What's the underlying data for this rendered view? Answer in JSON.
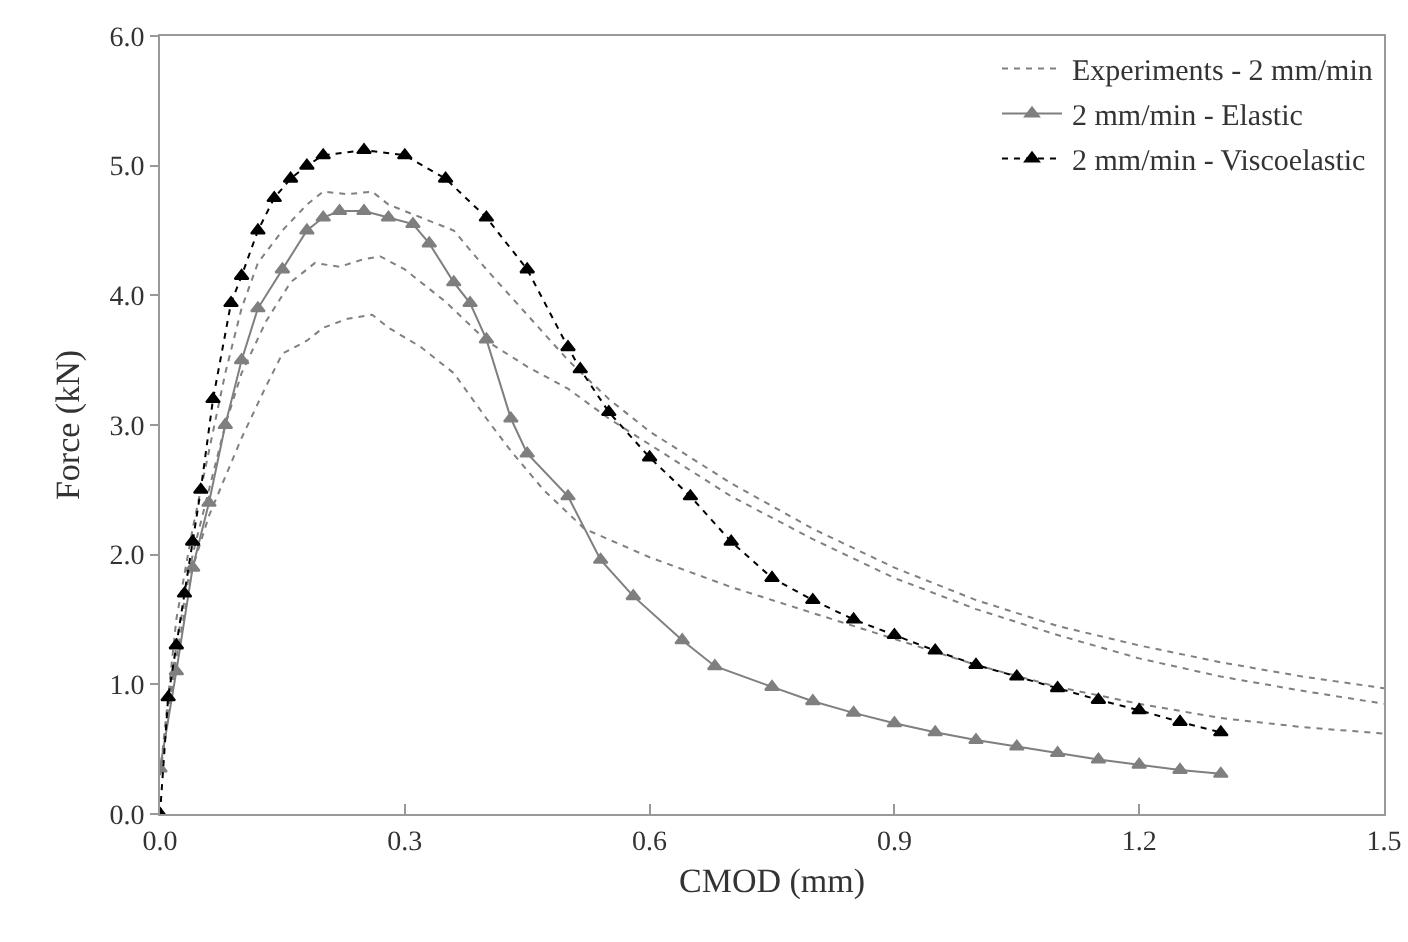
{
  "chart_data": {
    "type": "line",
    "xlabel": "CMOD (mm)",
    "ylabel": "Force (kN)",
    "xlim": [
      0,
      1.5
    ],
    "ylim": [
      0,
      6
    ],
    "xticks": [
      {
        "value": 0,
        "label": "0.0"
      },
      0.3,
      0.6,
      0.9,
      1.2,
      1.5
    ],
    "yticks": [
      {
        "value": 0,
        "label": "0.0"
      },
      {
        "value": 1,
        "label": "1.0"
      },
      {
        "value": 2,
        "label": "2.0"
      },
      {
        "value": 3,
        "label": "3.0"
      },
      {
        "value": 4,
        "label": "4.0"
      },
      {
        "value": 5,
        "label": "5.0"
      },
      {
        "value": 6,
        "label": "6.0"
      }
    ],
    "grid": false,
    "legend": "top right",
    "series": [
      {
        "name": "Experiments - 2 mm/min",
        "color": "#808080",
        "marker": "none",
        "line_style": "dotted",
        "x": [
          0,
          0.01,
          0.02,
          0.04,
          0.06,
          0.08,
          0.1,
          0.12,
          0.15,
          0.18,
          0.2,
          0.23,
          0.26,
          0.28,
          0.32,
          0.36,
          0.4,
          0.45,
          0.5,
          0.55,
          0.6,
          0.7,
          0.8,
          0.9,
          1.0,
          1.1,
          1.2,
          1.3,
          1.4,
          1.5
        ],
        "values": [
          0.3,
          0.9,
          1.5,
          2.2,
          2.8,
          3.4,
          3.9,
          4.25,
          4.5,
          4.7,
          4.8,
          4.78,
          4.8,
          4.7,
          4.6,
          4.5,
          4.2,
          3.85,
          3.5,
          3.2,
          2.95,
          2.55,
          2.2,
          1.9,
          1.65,
          1.45,
          1.3,
          1.17,
          1.06,
          0.97
        ]
      },
      {
        "color": "#808080",
        "marker": "none",
        "line_style": "dotted",
        "x": [
          0,
          0.02,
          0.04,
          0.06,
          0.08,
          0.1,
          0.13,
          0.16,
          0.19,
          0.22,
          0.25,
          0.27,
          0.3,
          0.35,
          0.4,
          0.45,
          0.5,
          0.55,
          0.6,
          0.7,
          0.8,
          0.9,
          1.0,
          1.1,
          1.2,
          1.3,
          1.4,
          1.5
        ],
        "values": [
          0.3,
          1.3,
          2.0,
          2.5,
          3.0,
          3.4,
          3.8,
          4.1,
          4.25,
          4.22,
          4.28,
          4.3,
          4.2,
          3.95,
          3.65,
          3.45,
          3.28,
          3.05,
          2.85,
          2.45,
          2.12,
          1.82,
          1.58,
          1.38,
          1.2,
          1.06,
          0.95,
          0.85
        ]
      },
      {
        "color": "#808080",
        "marker": "none",
        "line_style": "dotted",
        "x": [
          0,
          0.02,
          0.04,
          0.06,
          0.08,
          0.1,
          0.13,
          0.15,
          0.18,
          0.2,
          0.23,
          0.26,
          0.28,
          0.32,
          0.36,
          0.4,
          0.43,
          0.47,
          0.52,
          0.6,
          0.7,
          0.8,
          0.9,
          1.0,
          1.1,
          1.2,
          1.3,
          1.4,
          1.5
        ],
        "values": [
          0.3,
          1.2,
          1.9,
          2.3,
          2.6,
          2.9,
          3.3,
          3.55,
          3.65,
          3.75,
          3.82,
          3.85,
          3.75,
          3.6,
          3.4,
          3.05,
          2.8,
          2.5,
          2.2,
          1.98,
          1.75,
          1.55,
          1.35,
          1.15,
          0.98,
          0.85,
          0.74,
          0.67,
          0.62
        ]
      },
      {
        "name": "2 mm/min - Elastic",
        "color": "#7f7f7f",
        "marker": "triangle",
        "line_style": "solid",
        "x": [
          0,
          0.02,
          0.04,
          0.06,
          0.08,
          0.1,
          0.12,
          0.15,
          0.18,
          0.2,
          0.22,
          0.25,
          0.28,
          0.31,
          0.33,
          0.36,
          0.38,
          0.4,
          0.43,
          0.45,
          0.5,
          0.54,
          0.58,
          0.64,
          0.68,
          0.75,
          0.8,
          0.85,
          0.9,
          0.95,
          1.0,
          1.05,
          1.1,
          1.15,
          1.2,
          1.25,
          1.3
        ],
        "values": [
          0.35,
          1.1,
          1.9,
          2.4,
          3.0,
          3.5,
          3.9,
          4.2,
          4.5,
          4.6,
          4.65,
          4.65,
          4.6,
          4.55,
          4.4,
          4.1,
          3.94,
          3.66,
          3.05,
          2.78,
          2.45,
          1.96,
          1.68,
          1.34,
          1.14,
          0.98,
          0.87,
          0.78,
          0.7,
          0.63,
          0.57,
          0.52,
          0.47,
          0.42,
          0.38,
          0.34,
          0.31
        ]
      },
      {
        "name": "2 mm/min - Viscoelastic",
        "color": "#000000",
        "marker": "triangle",
        "line_style": "dotted",
        "x": [
          0,
          0.01,
          0.02,
          0.03,
          0.04,
          0.05,
          0.065,
          0.087,
          0.1,
          0.12,
          0.14,
          0.16,
          0.18,
          0.2,
          0.25,
          0.3,
          0.35,
          0.4,
          0.45,
          0.5,
          0.515,
          0.55,
          0.6,
          0.65,
          0.7,
          0.75,
          0.8,
          0.85,
          0.9,
          0.95,
          1.0,
          1.05,
          1.1,
          1.15,
          1.2,
          1.25,
          1.3
        ],
        "values": [
          0,
          0.9,
          1.3,
          1.7,
          2.1,
          2.5,
          3.2,
          3.94,
          4.15,
          4.5,
          4.75,
          4.9,
          5.0,
          5.08,
          5.12,
          5.08,
          4.9,
          4.6,
          4.2,
          3.6,
          3.43,
          3.1,
          2.75,
          2.45,
          2.1,
          1.82,
          1.65,
          1.5,
          1.38,
          1.26,
          1.15,
          1.06,
          0.97,
          0.88,
          0.8,
          0.71,
          0.63
        ]
      }
    ]
  }
}
